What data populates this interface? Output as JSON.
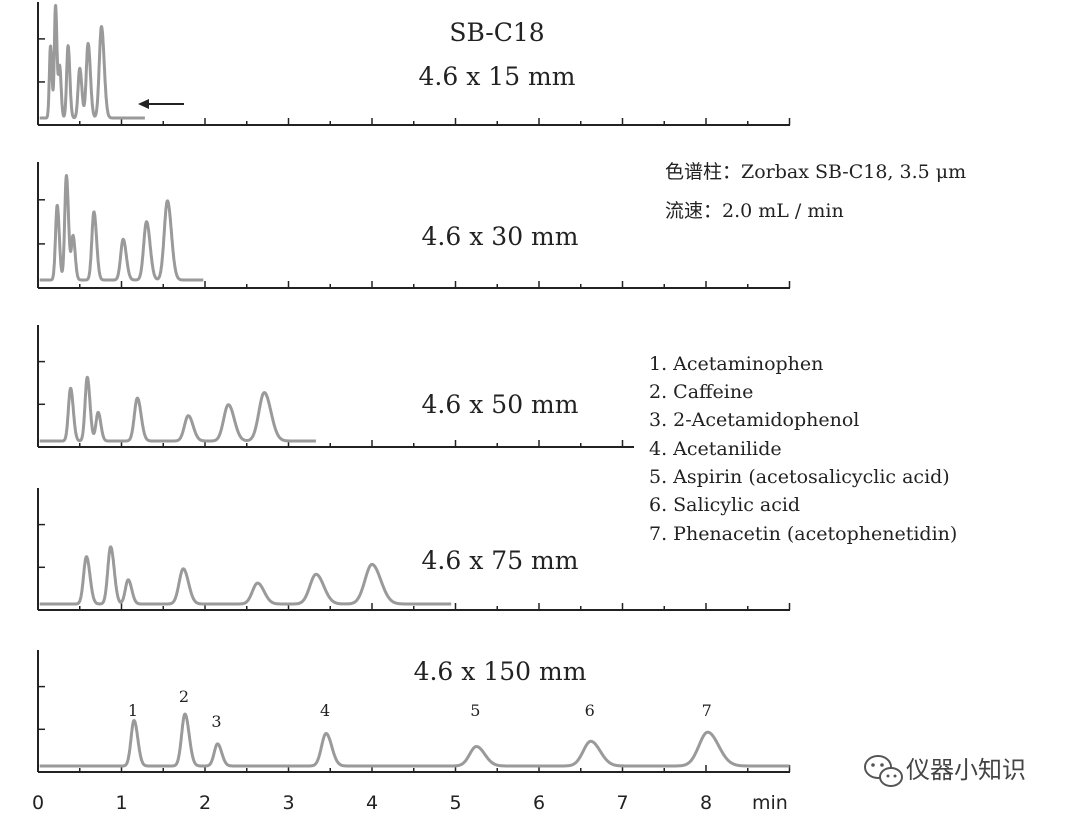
{
  "chart_data": {
    "type": "line",
    "title": "SB-C18",
    "xlabel": "min",
    "xlim": [
      0,
      9
    ],
    "x_ticks": [
      0,
      1,
      2,
      3,
      4,
      5,
      6,
      7,
      8
    ],
    "grid": false,
    "column_info": [
      "色谱柱：Zorbax SB-C18, 3.5 μm",
      "流速：2.0 mL / min"
    ],
    "legend": [
      "1. Acetaminophen",
      "2. Caffeine",
      "3. 2-Acetamidophenol",
      "4. Acetanilide",
      "5. Aspirin (acetosalicyclic acid)",
      "6. Salicylic acid",
      "7. Phenacetin (acetophenetidin)"
    ],
    "panels": [
      {
        "name": "4.6 x 15 mm",
        "x_end": 1.28,
        "peaks": [
          {
            "rt": 0.15,
            "height": 0.64,
            "width": 0.014
          },
          {
            "rt": 0.21,
            "height": 1.0,
            "width": 0.014
          },
          {
            "rt": 0.26,
            "height": 0.45,
            "width": 0.014
          },
          {
            "rt": 0.36,
            "height": 0.64,
            "width": 0.017
          },
          {
            "rt": 0.5,
            "height": 0.44,
            "width": 0.02
          },
          {
            "rt": 0.6,
            "height": 0.66,
            "width": 0.022
          },
          {
            "rt": 0.76,
            "height": 0.81,
            "width": 0.026
          }
        ],
        "annotation": "arrow"
      },
      {
        "name": "4.6 x 30 mm",
        "x_end": 1.98,
        "peaks": [
          {
            "rt": 0.23,
            "height": 0.68,
            "width": 0.02
          },
          {
            "rt": 0.34,
            "height": 0.95,
            "width": 0.02
          },
          {
            "rt": 0.42,
            "height": 0.4,
            "width": 0.02
          },
          {
            "rt": 0.67,
            "height": 0.62,
            "width": 0.025
          },
          {
            "rt": 1.02,
            "height": 0.37,
            "width": 0.03
          },
          {
            "rt": 1.3,
            "height": 0.53,
            "width": 0.034
          },
          {
            "rt": 1.55,
            "height": 0.72,
            "width": 0.038
          }
        ]
      },
      {
        "name": "4.6 x 50 mm",
        "x_end": 3.33,
        "peaks": [
          {
            "rt": 0.39,
            "height": 0.48,
            "width": 0.026
          },
          {
            "rt": 0.59,
            "height": 0.58,
            "width": 0.026
          },
          {
            "rt": 0.72,
            "height": 0.26,
            "width": 0.026
          },
          {
            "rt": 1.19,
            "height": 0.39,
            "width": 0.036
          },
          {
            "rt": 1.8,
            "height": 0.23,
            "width": 0.046
          },
          {
            "rt": 2.28,
            "height": 0.33,
            "width": 0.056
          },
          {
            "rt": 2.71,
            "height": 0.44,
            "width": 0.064
          }
        ]
      },
      {
        "name": "4.6 x 75 mm",
        "x_end": 4.95,
        "peaks": [
          {
            "rt": 0.58,
            "height": 0.43,
            "width": 0.034
          },
          {
            "rt": 0.87,
            "height": 0.52,
            "width": 0.034
          },
          {
            "rt": 1.08,
            "height": 0.22,
            "width": 0.034
          },
          {
            "rt": 1.74,
            "height": 0.32,
            "width": 0.05
          },
          {
            "rt": 2.63,
            "height": 0.19,
            "width": 0.062
          },
          {
            "rt": 3.33,
            "height": 0.27,
            "width": 0.074
          },
          {
            "rt": 4.0,
            "height": 0.36,
            "width": 0.084
          }
        ]
      },
      {
        "name": "4.6 x 150 mm",
        "x_end": 9.0,
        "peaks": [
          {
            "rt": 1.15,
            "height": 0.35,
            "width": 0.036,
            "label": "1"
          },
          {
            "rt": 1.76,
            "height": 0.4,
            "width": 0.04,
            "label": "2"
          },
          {
            "rt": 2.15,
            "height": 0.17,
            "width": 0.04,
            "label": "3"
          },
          {
            "rt": 3.45,
            "height": 0.25,
            "width": 0.054,
            "label": "4"
          },
          {
            "rt": 5.25,
            "height": 0.15,
            "width": 0.08,
            "label": "5"
          },
          {
            "rt": 6.62,
            "height": 0.19,
            "width": 0.09,
            "label": "6"
          },
          {
            "rt": 8.02,
            "height": 0.26,
            "width": 0.104,
            "label": "7"
          }
        ]
      }
    ]
  },
  "colors": {
    "trace": "#9a9a9a",
    "axis": "#222222",
    "text": "#222222"
  },
  "watermark": "仪器小知识",
  "watermark_icon": "wechat-icon"
}
